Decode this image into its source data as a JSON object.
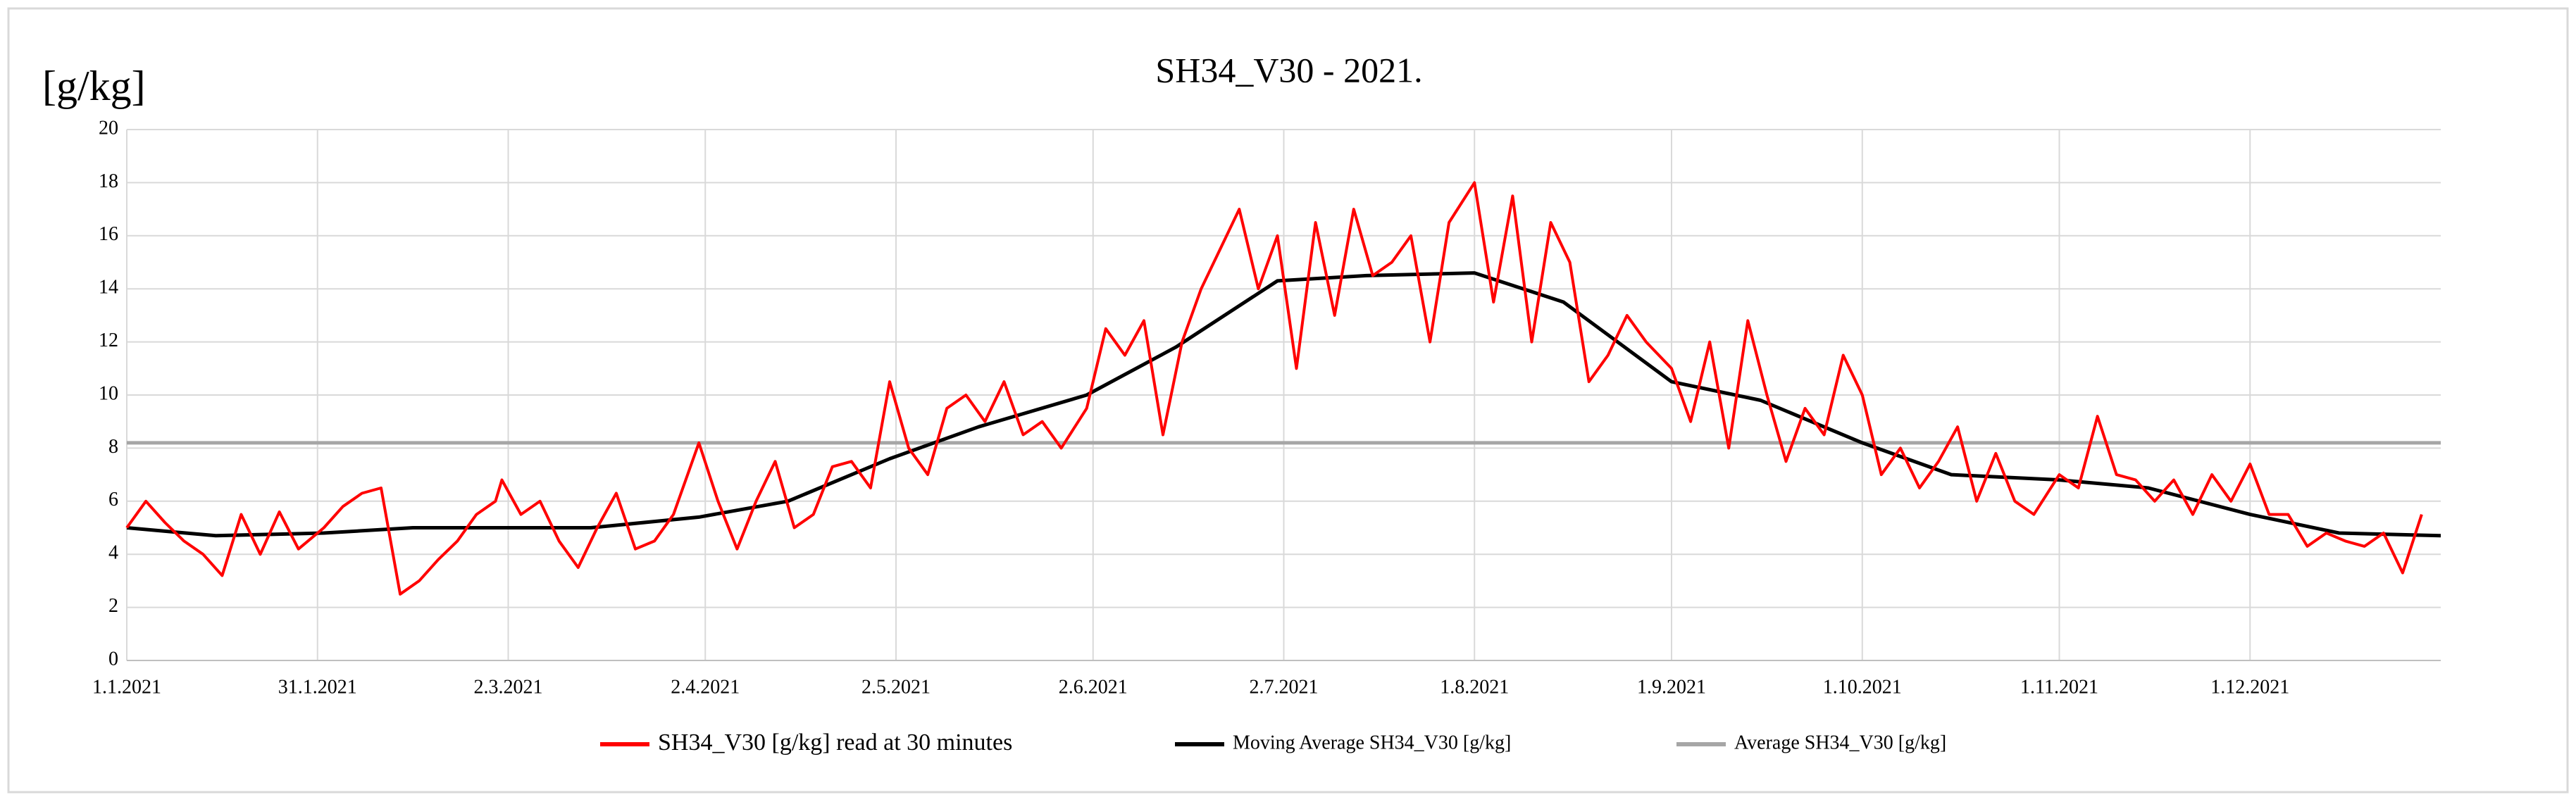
{
  "chart_data": {
    "type": "line",
    "title": "SH34_V30 - 2021.",
    "y_label": "[g/kg]",
    "xlim": [
      "1.1.2021",
      "31.12.2021"
    ],
    "xticks": [
      "1.1.2021",
      "31.1.2021",
      "2.3.2021",
      "2.4.2021",
      "2.5.2021",
      "2.6.2021",
      "2.7.2021",
      "1.8.2021",
      "1.9.2021",
      "1.10.2021",
      "1.11.2021",
      "1.12.2021"
    ],
    "ylim": [
      0,
      20
    ],
    "yticks": [
      0,
      2,
      4,
      6,
      8,
      10,
      12,
      14,
      16,
      18,
      20
    ],
    "grid": true,
    "legend": "bottom",
    "series": [
      {
        "name": "SH34_V30 [g/kg]  read at 30 minutes",
        "color": "#ff0000",
        "x": [
          "1.1.2021",
          "4.1.2021",
          "7.1.2021",
          "10.1.2021",
          "13.1.2021",
          "16.1.2021",
          "19.1.2021",
          "22.1.2021",
          "25.1.2021",
          "28.1.2021",
          "1.2.2021",
          "4.2.2021",
          "7.2.2021",
          "10.2.2021",
          "13.2.2021",
          "16.2.2021",
          "19.2.2021",
          "22.2.2021",
          "25.2.2021",
          "28.2.2021",
          "1.3.2021",
          "4.3.2021",
          "7.3.2021",
          "10.3.2021",
          "13.3.2021",
          "16.3.2021",
          "19.3.2021",
          "22.3.2021",
          "25.3.2021",
          "28.3.2021",
          "1.4.2021",
          "4.4.2021",
          "7.4.2021",
          "10.4.2021",
          "13.4.2021",
          "16.4.2021",
          "19.4.2021",
          "22.4.2021",
          "25.4.2021",
          "28.4.2021",
          "1.5.2021",
          "4.5.2021",
          "7.5.2021",
          "10.5.2021",
          "13.5.2021",
          "16.5.2021",
          "19.5.2021",
          "22.5.2021",
          "25.5.2021",
          "28.5.2021",
          "1.6.2021",
          "4.6.2021",
          "7.6.2021",
          "10.6.2021",
          "13.6.2021",
          "16.6.2021",
          "19.6.2021",
          "22.6.2021",
          "25.6.2021",
          "28.6.2021",
          "1.7.2021",
          "4.7.2021",
          "7.7.2021",
          "10.7.2021",
          "13.7.2021",
          "16.7.2021",
          "19.7.2021",
          "22.7.2021",
          "25.7.2021",
          "28.7.2021",
          "1.8.2021",
          "4.8.2021",
          "7.8.2021",
          "10.8.2021",
          "13.8.2021",
          "16.8.2021",
          "19.8.2021",
          "22.8.2021",
          "25.8.2021",
          "28.8.2021",
          "1.9.2021",
          "4.9.2021",
          "7.9.2021",
          "10.9.2021",
          "13.9.2021",
          "16.9.2021",
          "19.9.2021",
          "22.9.2021",
          "25.9.2021",
          "28.9.2021",
          "1.10.2021",
          "4.10.2021",
          "7.10.2021",
          "10.10.2021",
          "13.10.2021",
          "16.10.2021",
          "19.10.2021",
          "22.10.2021",
          "25.10.2021",
          "28.10.2021",
          "1.11.2021",
          "4.11.2021",
          "7.11.2021",
          "10.11.2021",
          "13.11.2021",
          "16.11.2021",
          "19.11.2021",
          "22.11.2021",
          "25.11.2021",
          "28.11.2021",
          "1.12.2021",
          "4.12.2021",
          "7.12.2021",
          "10.12.2021",
          "13.12.2021",
          "16.12.2021",
          "19.12.2021",
          "22.12.2021",
          "25.12.2021",
          "28.12.2021"
        ],
        "values": [
          5,
          6,
          5.2,
          4.5,
          4,
          3.2,
          5.5,
          4,
          5.6,
          4.2,
          5,
          5.8,
          6.3,
          6.5,
          2.5,
          3,
          3.8,
          4.5,
          5.5,
          6,
          6.8,
          5.5,
          6,
          4.5,
          3.5,
          5,
          6.3,
          4.2,
          4.5,
          5.5,
          8.2,
          6,
          4.2,
          6,
          7.5,
          5,
          5.5,
          7.3,
          7.5,
          6.5,
          10.5,
          8,
          7,
          9.5,
          10,
          9,
          10.5,
          8.5,
          9,
          8,
          9.5,
          12.5,
          11.5,
          12.8,
          8.5,
          12,
          14,
          15.5,
          17,
          14,
          16,
          11,
          16.5,
          13,
          17,
          14.5,
          15,
          16,
          12,
          16.5,
          18,
          13.5,
          17.5,
          12,
          16.5,
          15,
          10.5,
          11.5,
          13,
          12,
          11,
          9,
          12,
          8,
          12.8,
          10,
          7.5,
          9.5,
          8.5,
          11.5,
          10,
          7,
          8,
          6.5,
          7.5,
          8.8,
          6,
          7.8,
          6,
          5.5,
          7,
          6.5,
          9.2,
          7,
          6.8,
          6,
          6.8,
          5.5,
          7,
          6,
          7.4,
          5.5,
          5.5,
          4.3,
          4.8,
          4.5,
          4.3,
          4.8,
          3.3,
          5.5
        ]
      },
      {
        "name": "Moving Average SH34_V30 [g/kg]",
        "color": "#000000",
        "x": [
          "1.1.2021",
          "15.1.2021",
          "1.2.2021",
          "15.2.2021",
          "1.3.2021",
          "15.3.2021",
          "1.4.2021",
          "15.4.2021",
          "1.5.2021",
          "15.5.2021",
          "1.6.2021",
          "15.6.2021",
          "1.7.2021",
          "15.7.2021",
          "1.8.2021",
          "15.8.2021",
          "1.9.2021",
          "15.9.2021",
          "1.10.2021",
          "15.10.2021",
          "1.11.2021",
          "15.11.2021",
          "1.12.2021",
          "15.12.2021",
          "31.12.2021"
        ],
        "values": [
          5,
          4.7,
          4.8,
          5,
          5,
          5,
          5.4,
          6,
          7.6,
          8.8,
          10,
          11.8,
          14.3,
          14.5,
          14.6,
          13.5,
          10.5,
          9.8,
          8.2,
          7,
          6.8,
          6.5,
          5.5,
          4.8,
          4.7
        ]
      },
      {
        "name": "Average SH34_V30 [g/kg]",
        "color": "#a6a6a6",
        "x": [
          "1.1.2021",
          "31.12.2021"
        ],
        "values": [
          8.2,
          8.2
        ]
      }
    ]
  }
}
